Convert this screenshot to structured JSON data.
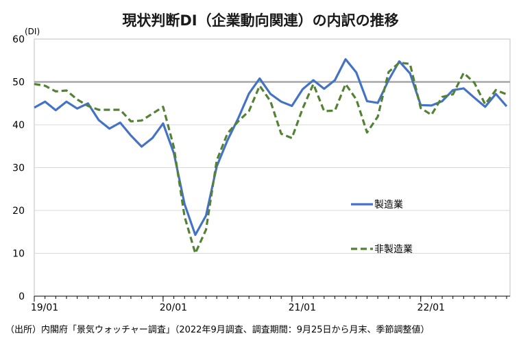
{
  "chart_data": {
    "type": "line",
    "title": "現状判断DI（企業動向関連）の内訳の推移",
    "ylabel": "(DI)",
    "ylim": [
      0,
      60
    ],
    "yticks": [
      0,
      10,
      20,
      30,
      40,
      50,
      60
    ],
    "reference_line": 50,
    "x_tick_labels": [
      "19/01",
      "20/01",
      "21/01",
      "22/01"
    ],
    "x_tick_index": [
      0,
      12,
      24,
      36
    ],
    "n_points": 45,
    "legend_position": "center-right",
    "grid": "horizontal",
    "series": [
      {
        "name": "製造業",
        "color": "#4472C4",
        "dash": "solid",
        "values": [
          44.0,
          45.4,
          43.4,
          45.4,
          43.8,
          45.0,
          41.1,
          39.1,
          40.5,
          37.5,
          34.9,
          36.9,
          40.3,
          33.4,
          21.5,
          14.3,
          18.8,
          30.3,
          36.4,
          41.5,
          47.3,
          50.8,
          47.2,
          45.4,
          44.4,
          48.3,
          50.4,
          48.4,
          50.4,
          55.3,
          52.2,
          45.5,
          45.1,
          50.4,
          54.8,
          52.0,
          44.6,
          44.5,
          45.5,
          48.1,
          48.5,
          46.3,
          44.2,
          47.2,
          44.3
        ]
      },
      {
        "name": "非製造業",
        "color": "#548235",
        "dash": "dashed",
        "values": [
          49.5,
          49.1,
          47.8,
          48.0,
          45.9,
          44.4,
          43.5,
          43.5,
          43.5,
          40.8,
          41.0,
          42.6,
          44.2,
          34.8,
          18.6,
          10.0,
          15.5,
          31.7,
          38.0,
          40.8,
          43.2,
          49.1,
          45.5,
          37.9,
          36.9,
          43.8,
          49.5,
          43.2,
          43.3,
          49.5,
          45.9,
          38.2,
          41.9,
          52.3,
          54.5,
          54.2,
          43.9,
          42.3,
          46.5,
          47.1,
          52.1,
          49.8,
          44.8,
          48.1,
          47.1
        ]
      }
    ]
  },
  "source_note": "（出所）内閣府「景気ウォッチャー調査」（2022年9月調査、調査期間：9月25日から月末、季節調整値）"
}
